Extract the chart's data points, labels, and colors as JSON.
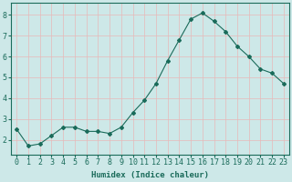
{
  "x": [
    0,
    1,
    2,
    3,
    4,
    5,
    6,
    7,
    8,
    9,
    10,
    11,
    12,
    13,
    14,
    15,
    16,
    17,
    18,
    19,
    20,
    21,
    22,
    23
  ],
  "y": [
    2.5,
    1.7,
    1.8,
    2.2,
    2.6,
    2.6,
    2.4,
    2.4,
    2.3,
    2.6,
    3.3,
    3.9,
    4.7,
    5.8,
    6.8,
    7.8,
    8.1,
    7.7,
    7.2,
    6.5,
    6.0,
    5.4,
    5.2,
    4.7
  ],
  "line_color": "#1a6b5a",
  "marker": "D",
  "marker_size": 2.0,
  "bg_color": "#cde8e8",
  "grid_color_h": "#e8b8b8",
  "grid_color_v": "#e8b8b8",
  "xlabel": "Humidex (Indice chaleur)",
  "xlim": [
    -0.5,
    23.5
  ],
  "ylim": [
    1.3,
    8.6
  ],
  "yticks": [
    2,
    3,
    4,
    5,
    6,
    7,
    8
  ],
  "xticks": [
    0,
    1,
    2,
    3,
    4,
    5,
    6,
    7,
    8,
    9,
    10,
    11,
    12,
    13,
    14,
    15,
    16,
    17,
    18,
    19,
    20,
    21,
    22,
    23
  ],
  "label_fontsize": 6.5,
  "tick_fontsize": 6.0
}
